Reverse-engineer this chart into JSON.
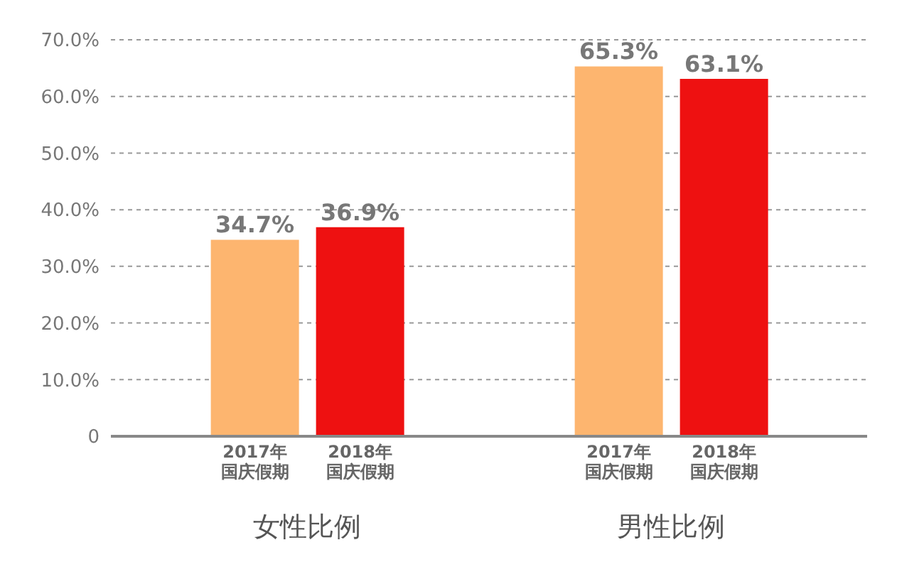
{
  "chart_data": {
    "type": "bar",
    "categories": [
      "女性比例",
      "男性比例"
    ],
    "series": [
      {
        "name": "2017年国庆假期",
        "color": "#fdb56f",
        "values": [
          34.7,
          65.3
        ],
        "value_labels": [
          "34.7%",
          "65.3%"
        ]
      },
      {
        "name": "2018年国庆假期",
        "color": "#ee1111",
        "values": [
          36.9,
          63.1
        ],
        "value_labels": [
          "36.9%",
          "63.1%"
        ]
      }
    ],
    "ylim": [
      0,
      70
    ],
    "yticks": [
      {
        "value": 0,
        "label": "0"
      },
      {
        "value": 10,
        "label": "10.0%"
      },
      {
        "value": 20,
        "label": "20.0%"
      },
      {
        "value": 30,
        "label": "30.0%"
      },
      {
        "value": 40,
        "label": "40.0%"
      },
      {
        "value": 50,
        "label": "50.0%"
      },
      {
        "value": 60,
        "label": "60.0%"
      },
      {
        "value": 70,
        "label": "70.0%"
      }
    ],
    "grid": "y",
    "legend": false
  }
}
